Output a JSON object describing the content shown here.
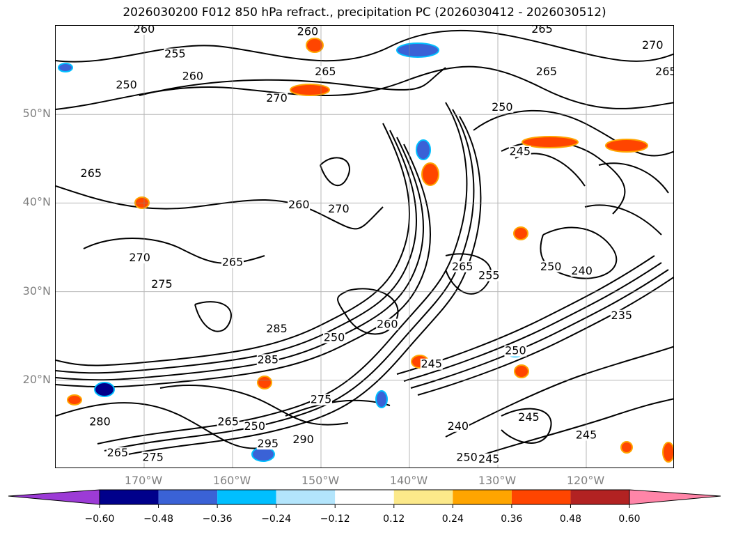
{
  "title": "2026030200 F012 850 hPa refract., precipitation PC (2026030412 - 2026030512)",
  "map": {
    "lat_labels": [
      {
        "text": "50°N",
        "lat": 50
      },
      {
        "text": "40°N",
        "lat": 40
      },
      {
        "text": "30°N",
        "lat": 30
      },
      {
        "text": "20°N",
        "lat": 20
      }
    ],
    "lon_labels": [
      {
        "text": "170°W",
        "lon": -170
      },
      {
        "text": "160°W",
        "lon": -160
      },
      {
        "text": "150°W",
        "lon": -150
      },
      {
        "text": "140°W",
        "lon": -140
      },
      {
        "text": "130°W",
        "lon": -130
      },
      {
        "text": "120°W",
        "lon": -120
      }
    ],
    "extent": {
      "lon_min": -180,
      "lon_max": -110,
      "lat_min": 10,
      "lat_max": 60
    },
    "grid": true,
    "contour_labels": [
      {
        "text": "260",
        "lon": -170,
        "lat": 59.3
      },
      {
        "text": "260",
        "lon": -151.5,
        "lat": 59
      },
      {
        "text": "265",
        "lon": -125,
        "lat": 59.3
      },
      {
        "text": "270",
        "lon": -112.5,
        "lat": 57.5
      },
      {
        "text": "265",
        "lon": -111,
        "lat": 54.5
      },
      {
        "text": "255",
        "lon": -166.5,
        "lat": 56.5
      },
      {
        "text": "260",
        "lon": -164.5,
        "lat": 54
      },
      {
        "text": "250",
        "lon": -172,
        "lat": 53
      },
      {
        "text": "265",
        "lon": -149.5,
        "lat": 54.5
      },
      {
        "text": "270",
        "lon": -155,
        "lat": 51.5
      },
      {
        "text": "265",
        "lon": -124.5,
        "lat": 54.5
      },
      {
        "text": "250",
        "lon": -129.5,
        "lat": 50.5
      },
      {
        "text": "245",
        "lon": -127.5,
        "lat": 45.5
      },
      {
        "text": "265",
        "lon": -176,
        "lat": 43
      },
      {
        "text": "260",
        "lon": -152.5,
        "lat": 39.5
      },
      {
        "text": "270",
        "lon": -148,
        "lat": 39
      },
      {
        "text": "270",
        "lon": -170.5,
        "lat": 33.5
      },
      {
        "text": "265",
        "lon": -160,
        "lat": 33
      },
      {
        "text": "275",
        "lon": -168,
        "lat": 30.5
      },
      {
        "text": "265",
        "lon": -134,
        "lat": 32.5
      },
      {
        "text": "255",
        "lon": -131,
        "lat": 31.5
      },
      {
        "text": "250",
        "lon": -124,
        "lat": 32.5
      },
      {
        "text": "240",
        "lon": -120.5,
        "lat": 32
      },
      {
        "text": "285",
        "lon": -155,
        "lat": 25.5
      },
      {
        "text": "260",
        "lon": -142.5,
        "lat": 26
      },
      {
        "text": "250",
        "lon": -148.5,
        "lat": 24.5
      },
      {
        "text": "250",
        "lon": -128,
        "lat": 23
      },
      {
        "text": "235",
        "lon": -116,
        "lat": 27
      },
      {
        "text": "285",
        "lon": -156,
        "lat": 22
      },
      {
        "text": "245",
        "lon": -137.5,
        "lat": 21.5
      },
      {
        "text": "275",
        "lon": -150,
        "lat": 17.5
      },
      {
        "text": "265",
        "lon": -160.5,
        "lat": 15
      },
      {
        "text": "250",
        "lon": -157.5,
        "lat": 14.5
      },
      {
        "text": "280",
        "lon": -175,
        "lat": 15
      },
      {
        "text": "240",
        "lon": -134.5,
        "lat": 14.5
      },
      {
        "text": "245",
        "lon": -126.5,
        "lat": 15.5
      },
      {
        "text": "245",
        "lon": -120,
        "lat": 13.5
      },
      {
        "text": "275",
        "lon": -169,
        "lat": 11
      },
      {
        "text": "265",
        "lon": -173,
        "lat": 11.5
      },
      {
        "text": "295",
        "lon": -156,
        "lat": 12.5
      },
      {
        "text": "290",
        "lon": -152,
        "lat": 13
      },
      {
        "text": "250",
        "lon": -133.5,
        "lat": 11
      },
      {
        "text": "245",
        "lon": -131,
        "lat": 10.8
      }
    ]
  },
  "colorbar": {
    "colors": [
      "#9c3bd6",
      "#00008b",
      "#3a62d6",
      "#00bfff",
      "#b3e5fc",
      "#ffffff",
      "#fce98a",
      "#ffa500",
      "#ff4500",
      "#b22222",
      "#ff85a8"
    ],
    "ticks": [
      "−0.60",
      "−0.48",
      "−0.36",
      "−0.24",
      "−0.12",
      "0.12",
      "0.24",
      "0.36",
      "0.48",
      "0.60"
    ]
  }
}
